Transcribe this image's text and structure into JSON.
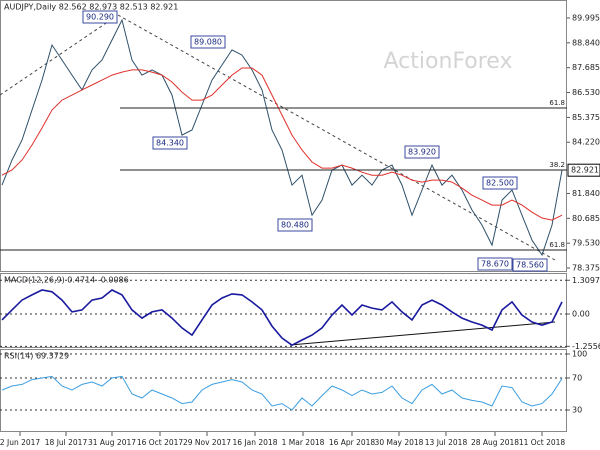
{
  "watermark": "ActionForex",
  "chart_data": [
    {
      "type": "line",
      "title": "AUDJPY,Daily  82.562 82.973 82.513 82.921",
      "xlim": [
        -0.2,
        56.5
      ],
      "xticks": [
        {
          "value": 1.8,
          "label": "2 Jun 2017"
        },
        {
          "value": 6.4,
          "label": "18 Jul 2017"
        },
        {
          "value": 11,
          "label": "31 Aug 2017"
        },
        {
          "value": 15.8,
          "label": "16 Oct 2017"
        },
        {
          "value": 20.5,
          "label": "29 Nov 2017"
        },
        {
          "value": 25.3,
          "label": "16 Jan 2018"
        },
        {
          "value": 30.1,
          "label": "1 Mar 2018"
        },
        {
          "value": 35,
          "label": "16 Apr 2018"
        },
        {
          "value": 39.7,
          "label": "30 May 2018"
        },
        {
          "value": 44.4,
          "label": "13 Jul 2018"
        },
        {
          "value": 49.3,
          "label": "28 Aug 2018"
        },
        {
          "value": 54,
          "label": "11 Oct 2018"
        }
      ],
      "ylim": [
        78.19,
        90.83
      ],
      "yticks": [
        {
          "value": 89.995,
          "label": "89.995"
        },
        {
          "value": 88.84,
          "label": "88.840"
        },
        {
          "value": 87.685,
          "label": "87.685"
        },
        {
          "value": 86.53,
          "label": "86.530"
        },
        {
          "value": 85.375,
          "label": "85.375"
        },
        {
          "value": 84.22,
          "label": "84.220"
        },
        {
          "value": 81.84,
          "label": "81.840"
        },
        {
          "value": 80.685,
          "label": "80.685"
        },
        {
          "value": 79.53,
          "label": "79.530"
        },
        {
          "value": 78.375,
          "label": "78.375"
        }
      ],
      "last_price": 82.921,
      "levels": [
        {
          "label": "61.8",
          "value": 85.81
        },
        {
          "label": "38.2",
          "value": 82.93
        },
        {
          "label": "61.8",
          "value": 79.21
        }
      ],
      "annotations": [
        "90.290",
        "89.080",
        "84.340",
        "80.480",
        "83.920",
        "82.500",
        "78.670",
        "78.560"
      ],
      "series": [
        {
          "name": "Close",
          "color": "#2e5068",
          "values": [
            82.23,
            83.39,
            84.32,
            85.72,
            87.11,
            88.74,
            88.04,
            87.34,
            86.65,
            87.58,
            88.04,
            88.97,
            89.9,
            88.04,
            87.34,
            87.58,
            87.34,
            86.41,
            84.55,
            84.79,
            85.95,
            87.11,
            87.81,
            88.51,
            88.27,
            87.58,
            86.65,
            84.79,
            83.86,
            82.23,
            82.69,
            80.83,
            81.53,
            82.93,
            83.16,
            82.23,
            82.69,
            82.23,
            82.93,
            83.16,
            82.23,
            80.83,
            82.0,
            83.16,
            82.23,
            82.69,
            82.0,
            81.07,
            80.37,
            79.44,
            81.53,
            82.0,
            80.83,
            79.67,
            78.98,
            80.37,
            82.92
          ]
        },
        {
          "name": "MA",
          "color": "#e0302b",
          "values": [
            82.69,
            82.93,
            83.39,
            84.09,
            84.88,
            85.72,
            86.18,
            86.41,
            86.65,
            86.88,
            87.11,
            87.34,
            87.48,
            87.58,
            87.58,
            87.48,
            87.34,
            87.02,
            86.55,
            86.18,
            86.18,
            86.41,
            86.88,
            87.34,
            87.67,
            87.67,
            87.34,
            86.41,
            85.48,
            84.55,
            83.86,
            83.3,
            83.02,
            83.02,
            83.16,
            83.02,
            82.83,
            82.69,
            82.69,
            82.83,
            82.69,
            82.46,
            82.37,
            82.46,
            82.46,
            82.37,
            82.09,
            81.76,
            81.53,
            81.3,
            81.3,
            81.53,
            81.3,
            80.97,
            80.7,
            80.6,
            80.83
          ]
        }
      ]
    },
    {
      "type": "line",
      "title": "MACD(12,26,9) 0.4714 -0.0086",
      "ylim": [
        -1.32,
        1.63
      ],
      "yticks": [
        {
          "value": 1.3097,
          "label": "1.3097"
        },
        {
          "value": 0,
          "label": "0.00"
        },
        {
          "value": -1.2556,
          "label": "-1.2556"
        }
      ],
      "series": [
        {
          "name": "MACD",
          "color": "#1a1aa0",
          "values": [
            -0.23,
            0.16,
            0.54,
            0.74,
            0.93,
            0.86,
            0.54,
            0.08,
            0.16,
            0.54,
            0.62,
            0.93,
            0.74,
            0.16,
            -0.16,
            0.08,
            0.16,
            -0.16,
            -0.54,
            -0.82,
            -0.23,
            0.35,
            0.62,
            0.78,
            0.74,
            0.47,
            0.16,
            -0.47,
            -0.93,
            -1.21,
            -1.01,
            -0.82,
            -0.54,
            -0.04,
            0.35,
            -0.04,
            0.35,
            0.23,
            0.16,
            0.47,
            0.08,
            -0.23,
            0.35,
            0.54,
            0.35,
            0.08,
            -0.16,
            -0.31,
            -0.43,
            -0.62,
            0.16,
            0.47,
            -0.04,
            -0.31,
            -0.43,
            -0.31,
            0.47
          ]
        }
      ]
    },
    {
      "type": "line",
      "title": "RSI(14) 69.3729",
      "ylim": [
        2.5,
        105
      ],
      "yticks": [
        100,
        70,
        30
      ],
      "series": [
        {
          "name": "RSI",
          "color": "#3c9ee0",
          "values": [
            55,
            60,
            62,
            68,
            70,
            72,
            60,
            55,
            62,
            65,
            60,
            70,
            72,
            50,
            45,
            55,
            50,
            45,
            38,
            40,
            55,
            62,
            65,
            68,
            65,
            55,
            50,
            35,
            38,
            30,
            45,
            35,
            48,
            60,
            55,
            48,
            55,
            50,
            52,
            60,
            45,
            38,
            55,
            62,
            50,
            55,
            45,
            42,
            40,
            35,
            60,
            58,
            40,
            35,
            38,
            50,
            69.37
          ]
        }
      ]
    }
  ]
}
